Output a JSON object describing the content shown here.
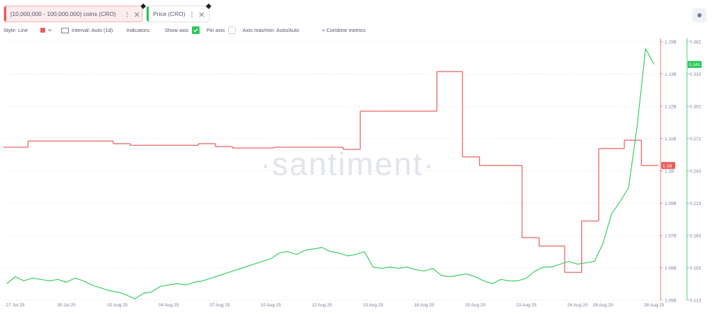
{
  "toolbar": {
    "style": "Style: Line",
    "interval": "Interval: Auto (1d)",
    "indicators": "Indicators:",
    "show_axis": "Show axis",
    "pin_axis": "Pin axis",
    "axis_minmax": "Axis max/min: Auto/Auto",
    "combine": "+ Combine metrics"
  },
  "chart_data": {
    "type": "line",
    "watermark": "·santiment·",
    "grid": true,
    "x": [
      null,
      "27 Jul 25",
      null,
      null,
      null,
      null,
      null,
      "30 Jul 25",
      null,
      null,
      null,
      null,
      null,
      "02 Aug 25",
      null,
      null,
      null,
      null,
      null,
      "04 Aug 25",
      null,
      null,
      null,
      null,
      null,
      "07 Aug 25",
      null,
      null,
      null,
      null,
      null,
      "10 Aug 25",
      null,
      null,
      null,
      null,
      null,
      "12 Aug 25",
      null,
      null,
      null,
      null,
      null,
      "15 Aug 25",
      null,
      null,
      null,
      null,
      null,
      "18 Aug 25",
      null,
      null,
      null,
      null,
      null,
      "20 Aug 25",
      null,
      null,
      null,
      null,
      null,
      "23 Aug 25",
      null,
      null,
      null,
      null,
      null,
      "26 Aug 25",
      null,
      null,
      "28 Aug 25",
      null,
      null,
      null,
      null,
      null,
      "28 Aug 25"
    ],
    "ylim": [
      1050000000,
      1146000000
    ],
    "yticks": [
      {
        "value": 1050000000,
        "label": "1.05B"
      },
      {
        "value": 1062000000,
        "label": "1.06B"
      },
      {
        "value": 1074000000,
        "label": "1.07B"
      },
      {
        "value": 1086000000,
        "label": "1.09B"
      },
      {
        "value": 1098000000,
        "label": "1.1B"
      },
      {
        "value": 1110000000,
        "label": "1.11B"
      },
      {
        "value": 1122000000,
        "label": "1.12B"
      },
      {
        "value": 1134000000,
        "label": "1.13B"
      },
      {
        "value": 1146000000,
        "label": "1.15B"
      }
    ],
    "y2lim": [
      0.1232,
      0.362
    ],
    "y2ticks": [
      {
        "value": 0.1232,
        "label": "0.123"
      },
      {
        "value": 0.15305,
        "label": "0.153"
      },
      {
        "value": 0.1829,
        "label": "0.183"
      },
      {
        "value": 0.21275,
        "label": "0.213"
      },
      {
        "value": 0.2426,
        "label": "0.243"
      },
      {
        "value": 0.27245,
        "label": "0.272"
      },
      {
        "value": 0.3023,
        "label": "0.302"
      },
      {
        "value": 0.33215,
        "label": "0.332"
      },
      0.362
    ],
    "series": [
      {
        "name": "[10,000,000 - 100,000,000) coins (CRO)",
        "color": "#ea5a5a",
        "step": true,
        "values": [
          1106800000,
          1106800000,
          1106800000,
          1109100000,
          1109100000,
          1109100000,
          1109100000,
          1109100000,
          1109100000,
          1109100000,
          1109100000,
          1109100000,
          1109100000,
          1108100000,
          1108100000,
          1107500000,
          1107500000,
          1107500000,
          1107500000,
          1107500000,
          1107500000,
          1107500000,
          1107500000,
          1108100000,
          1108100000,
          1107000000,
          1107000000,
          1106500000,
          1106500000,
          1106500000,
          1106500000,
          1106500000,
          1106800000,
          1106800000,
          1106800000,
          1106800000,
          1106800000,
          1106800000,
          1106800000,
          1106800000,
          1106000000,
          1106000000,
          1120200000,
          1120200000,
          1120200000,
          1120200000,
          1120200000,
          1120200000,
          1120200000,
          1120200000,
          1120200000,
          1134900000,
          1134900000,
          1134900000,
          1103200000,
          1103200000,
          1100000000,
          1100000000,
          1100000000,
          1100000000,
          1100000000,
          1073200000,
          1073200000,
          1070100000,
          1070100000,
          1070100000,
          1060300000,
          1060300000,
          1079400000,
          1079400000,
          1106300000,
          1106300000,
          1106300000,
          1109400000,
          1109400000,
          1100000000,
          1100000000
        ],
        "value_labels": [
          null,
          null,
          null,
          null,
          null,
          null,
          null,
          null,
          null,
          null,
          null,
          null,
          null,
          null,
          null,
          null,
          null,
          null,
          null,
          null,
          null,
          null,
          null,
          null,
          null,
          null,
          null,
          null,
          null,
          null,
          null,
          null,
          null,
          null,
          null,
          null,
          null,
          null,
          null,
          null,
          null,
          null,
          null,
          null,
          null,
          null,
          null,
          null,
          null,
          null,
          null,
          null,
          null,
          null,
          null,
          null,
          null,
          null,
          null,
          null,
          null,
          null,
          null,
          null,
          null,
          null,
          null,
          null,
          null,
          null,
          null,
          null,
          null,
          null,
          null,
          null,
          "1.1B"
        ]
      },
      {
        "name": "Price (CRO)",
        "color": "#26c953",
        "axis": "y2",
        "values": [
          0.1384,
          0.1448,
          0.141,
          0.1435,
          0.1423,
          0.141,
          0.1423,
          0.1397,
          0.1435,
          0.141,
          0.1371,
          0.1346,
          0.132,
          0.1307,
          0.1281,
          0.1243,
          0.1294,
          0.1307,
          0.1358,
          0.1371,
          0.1384,
          0.1371,
          0.1397,
          0.141,
          0.1435,
          0.1461,
          0.1487,
          0.1513,
          0.1538,
          0.1564,
          0.159,
          0.1615,
          0.1667,
          0.168,
          0.1654,
          0.1692,
          0.1705,
          0.1718,
          0.168,
          0.1667,
          0.1641,
          0.1654,
          0.168,
          0.1538,
          0.1525,
          0.1538,
          0.1525,
          0.1538,
          0.1513,
          0.15,
          0.1525,
          0.1461,
          0.1448,
          0.1461,
          0.1474,
          0.1448,
          0.141,
          0.1384,
          0.1423,
          0.141,
          0.141,
          0.1435,
          0.15,
          0.1538,
          0.1538,
          0.1564,
          0.159,
          0.1564,
          0.1577,
          0.159,
          0.1757,
          0.2027,
          0.2142,
          0.2271,
          0.2836,
          0.3556,
          0.341
        ]
      }
    ]
  }
}
